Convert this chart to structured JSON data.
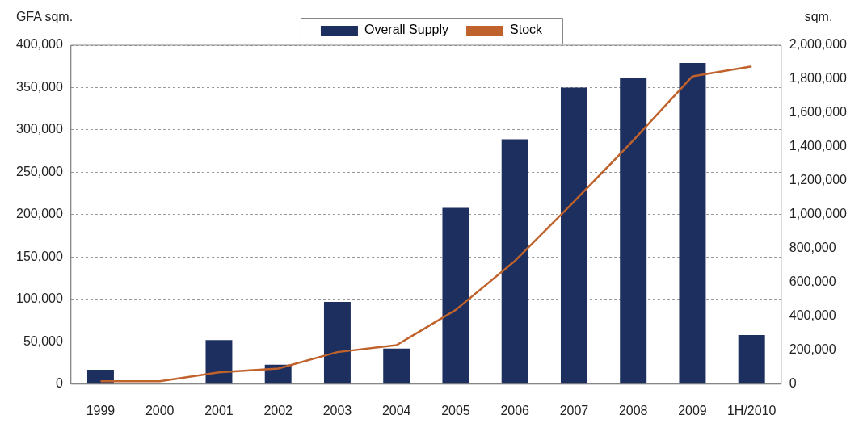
{
  "chart_data": {
    "type": "bar",
    "ylabel": "GFA sqm.",
    "y2label": "sqm.",
    "categories": [
      "1999",
      "2000",
      "2001",
      "2002",
      "2003",
      "2004",
      "2005",
      "2006",
      "2007",
      "2008",
      "2009",
      "1H/2010"
    ],
    "series": [
      {
        "name": "Overall Supply",
        "color": "#1c2f5f",
        "values": [
          17000,
          null,
          52000,
          23000,
          97000,
          42000,
          208000,
          289000,
          350000,
          361000,
          379000,
          58000
        ]
      },
      {
        "name": "Stock",
        "type": "line",
        "axis": "y2",
        "color": "#c0622b",
        "values": [
          17000,
          17000,
          69000,
          92000,
          189000,
          230000,
          438000,
          727000,
          1077000,
          1438000,
          1817000,
          1875000
        ]
      }
    ],
    "ylim": [
      0,
      400000
    ],
    "yticks": [
      {
        "value": 0,
        "label": "0"
      },
      {
        "value": 50000,
        "label": "50,000"
      },
      {
        "value": 100000,
        "label": "100,000"
      },
      {
        "value": 150000,
        "label": "150,000"
      },
      {
        "value": 200000,
        "label": "200,000"
      },
      {
        "value": 250000,
        "label": "250,000"
      },
      {
        "value": 300000,
        "label": "300,000"
      },
      {
        "value": 350000,
        "label": "350,000"
      },
      {
        "value": 400000,
        "label": "400,000"
      }
    ],
    "y2lim": [
      0,
      2000000
    ],
    "y2ticks": [
      {
        "value": 0,
        "label": "0"
      },
      {
        "value": 200000,
        "label": "200,000"
      },
      {
        "value": 400000,
        "label": "400,000"
      },
      {
        "value": 600000,
        "label": "600,000"
      },
      {
        "value": 800000,
        "label": "800,000"
      },
      {
        "value": 1000000,
        "label": "1,000,000"
      },
      {
        "value": 1200000,
        "label": "1,200,000"
      },
      {
        "value": 1400000,
        "label": "1,400,000"
      },
      {
        "value": 1600000,
        "label": "1,600,000"
      },
      {
        "value": 1800000,
        "label": "1,800,000"
      },
      {
        "value": 2000000,
        "label": "2,000,000"
      }
    ],
    "grid": "y",
    "legend": "top",
    "marker": "none",
    "line_style": "solid"
  }
}
